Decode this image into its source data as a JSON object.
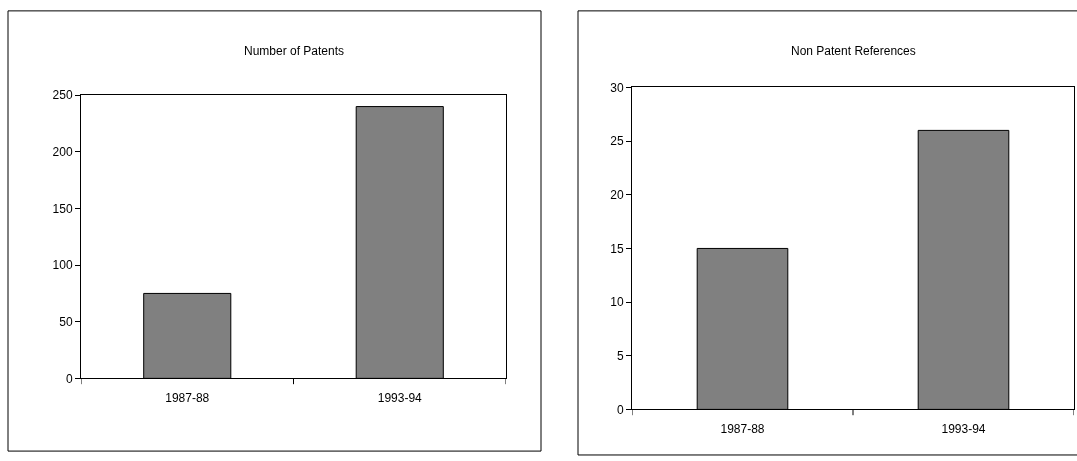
{
  "chart_data": [
    {
      "type": "bar",
      "title": "Number of Patents",
      "categories": [
        "1987-88",
        "1993-94"
      ],
      "values": [
        75,
        240
      ],
      "color": "#808080",
      "ylim": [
        0,
        250
      ],
      "yticks": [
        0,
        50,
        100,
        150,
        200,
        250
      ]
    },
    {
      "type": "bar",
      "title": "Non Patent References",
      "categories": [
        "1987-88",
        "1993-94"
      ],
      "values": [
        15,
        26
      ],
      "color": "#808080",
      "ylim": [
        0,
        30
      ],
      "yticks": [
        0,
        5,
        10,
        15,
        20,
        25,
        30
      ]
    }
  ]
}
